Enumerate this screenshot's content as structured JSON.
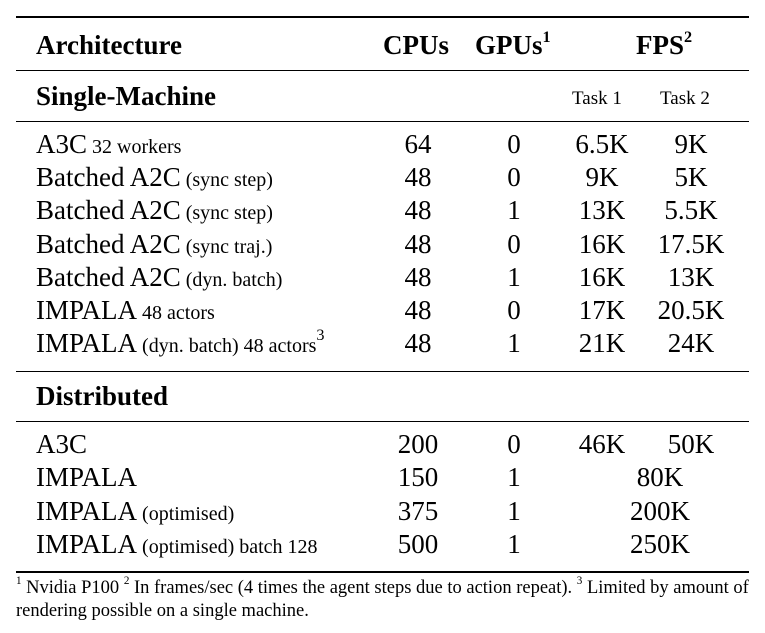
{
  "header": {
    "architecture": "Architecture",
    "cpus": "CPUs",
    "gpus": "GPUs",
    "gpus_note": "1",
    "fps": "FPS",
    "fps_note": "2"
  },
  "single_machine": {
    "title": "Single-Machine",
    "task1": "Task 1",
    "task2": "Task 2",
    "rows": [
      {
        "name": "A3C",
        "qual": " 32 workers",
        "sup": "",
        "cpus": "64",
        "gpus": "0",
        "task1": "6.5K",
        "task2": "9K"
      },
      {
        "name": "Batched A2C",
        "qual": " (sync step)",
        "sup": "",
        "cpus": "48",
        "gpus": "0",
        "task1": "9K",
        "task2": "5K"
      },
      {
        "name": "Batched A2C",
        "qual": " (sync step)",
        "sup": "",
        "cpus": "48",
        "gpus": "1",
        "task1": "13K",
        "task2": "5.5K"
      },
      {
        "name": "Batched A2C",
        "qual": " (sync traj.)",
        "sup": "",
        "cpus": "48",
        "gpus": "0",
        "task1": "16K",
        "task2": "17.5K"
      },
      {
        "name": "Batched A2C",
        "qual": " (dyn. batch)",
        "sup": "",
        "cpus": "48",
        "gpus": "1",
        "task1": "16K",
        "task2": "13K"
      },
      {
        "name": "IMPALA",
        "qual": " 48 actors",
        "sup": "",
        "cpus": "48",
        "gpus": "0",
        "task1": "17K",
        "task2": "20.5K"
      },
      {
        "name": "IMPALA",
        "qual": " (dyn. batch) 48 actors",
        "sup": "3",
        "cpus": "48",
        "gpus": "1",
        "task1": "21K",
        "task2": "24K"
      }
    ]
  },
  "distributed": {
    "title": "Distributed",
    "rows": [
      {
        "name": "A3C",
        "qual": "",
        "cpus": "200",
        "gpus": "0",
        "task1": "46K",
        "task2": "50K",
        "fps": ""
      },
      {
        "name": "IMPALA",
        "qual": "",
        "cpus": "150",
        "gpus": "1",
        "task1": "",
        "task2": "",
        "fps": "80K"
      },
      {
        "name": "IMPALA",
        "qual": " (optimised)",
        "cpus": "375",
        "gpus": "1",
        "task1": "",
        "task2": "",
        "fps": "200K"
      },
      {
        "name": "IMPALA",
        "qual": " (optimised) batch 128",
        "cpus": "500",
        "gpus": "1",
        "task1": "",
        "task2": "",
        "fps": "250K"
      }
    ]
  },
  "footnotes": {
    "n1": "1",
    "t1": " Nvidia P100 ",
    "n2": "2",
    "t2": " In frames/sec (4 times the agent steps due to action repeat). ",
    "n3": "3",
    "t3": " Limited by amount of rendering possible on a single machine."
  }
}
